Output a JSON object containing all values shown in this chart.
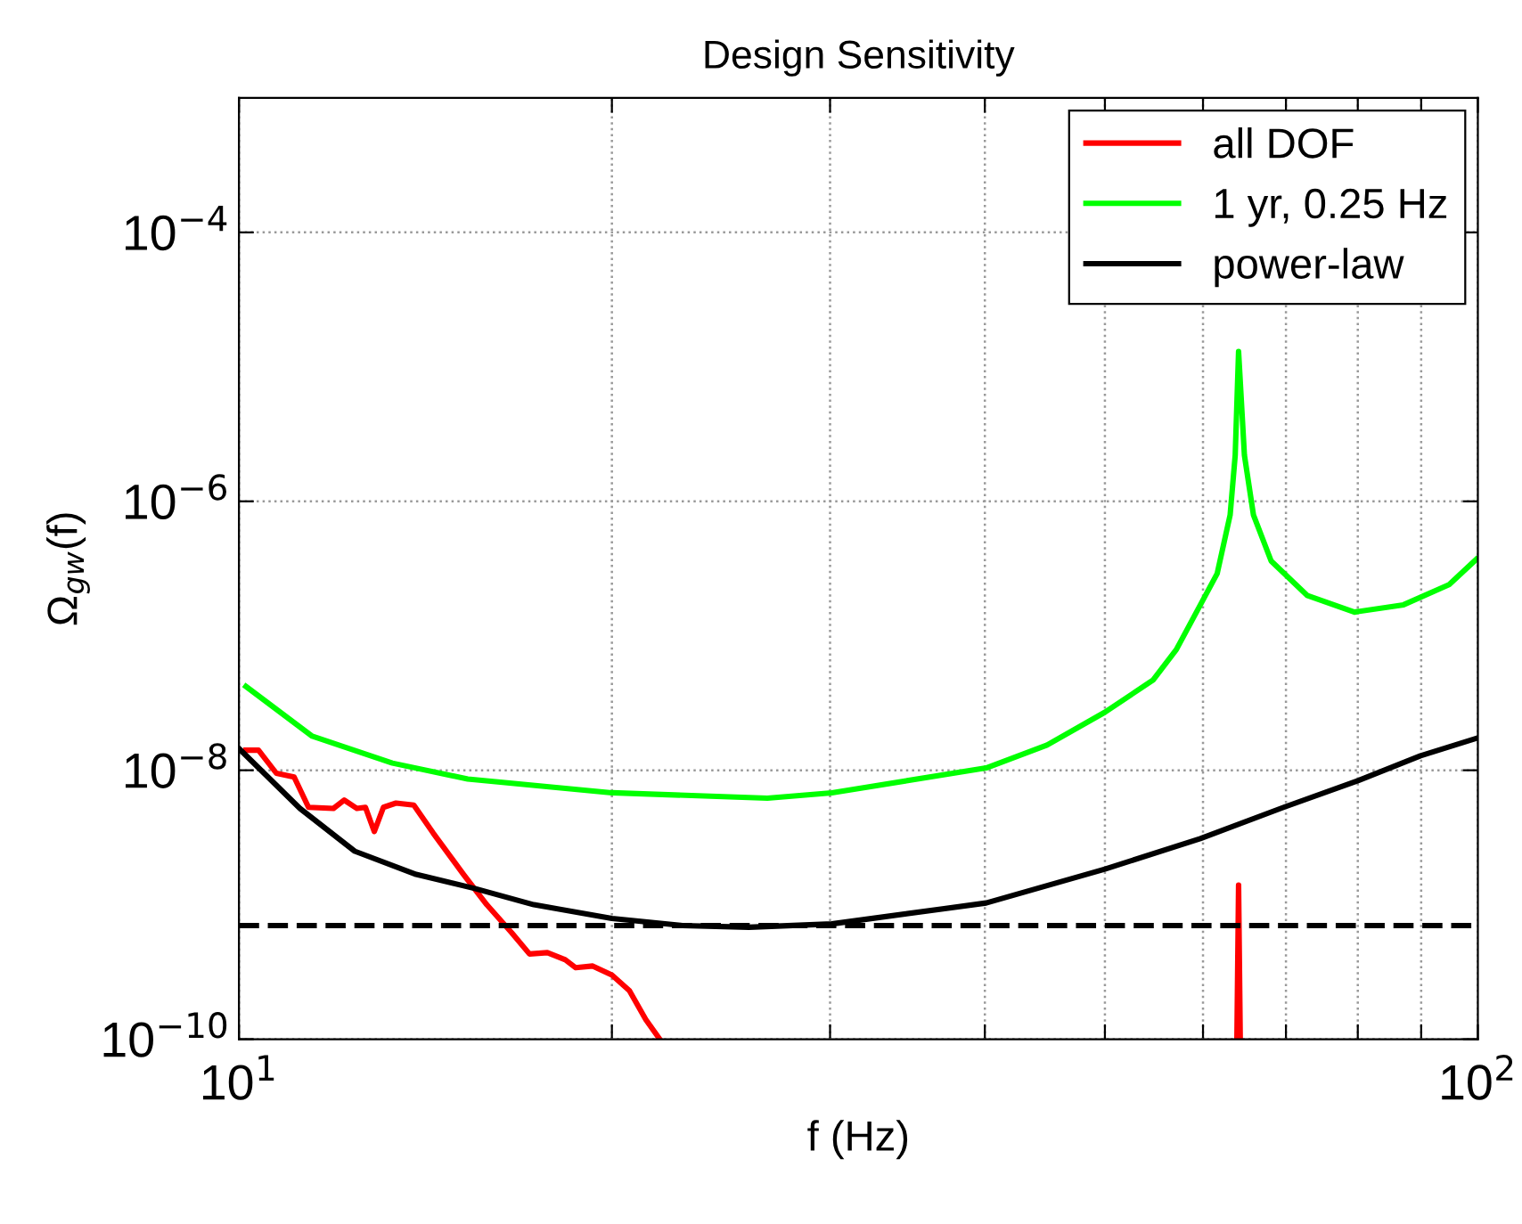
{
  "chart_data": {
    "type": "line",
    "title": "Design Sensitivity",
    "xlabel": "f (Hz)",
    "ylabel": "Ω$_{gw}$(f)",
    "log": "xy",
    "grid": true,
    "legend": "top right",
    "line_style": "solid",
    "marker": "none",
    "xlim": [
      10,
      100
    ],
    "ylim": [
      1e-10,
      0.001
    ],
    "xticks": [
      {
        "value": 10,
        "label": "10$^{1}$"
      },
      {
        "value": 20,
        "label": null
      },
      {
        "value": 30,
        "label": null
      },
      {
        "value": 40,
        "label": null
      },
      {
        "value": 50,
        "label": null
      },
      {
        "value": 60,
        "label": null
      },
      {
        "value": 70,
        "label": null
      },
      {
        "value": 80,
        "label": null
      },
      {
        "value": 90,
        "label": null
      },
      {
        "value": 100,
        "label": "10$^{2}$"
      }
    ],
    "yticks": [
      {
        "value": 1e-10,
        "label": "10$^{−10}$"
      },
      {
        "value": 1e-08,
        "label": "10$^{−8}$"
      },
      {
        "value": 1e-06,
        "label": "10$^{−6}$"
      },
      {
        "value": 0.0001,
        "label": "10$^{−4}$"
      }
    ],
    "series": [
      {
        "name": "all DOF",
        "color": "#ff0000",
        "x": [
          10.13,
          10.37,
          10.72,
          11.08,
          11.38,
          11.92,
          12.16,
          12.45,
          12.65,
          12.86,
          13.08,
          13.39,
          13.84,
          14.35,
          15.18,
          15.85,
          16.6,
          17.16,
          17.74,
          18.34,
          18.7,
          19.3,
          20.0,
          20.66,
          21.3,
          21.86,
          22.5,
          63.9,
          64.1,
          64.3
        ],
        "values": [
          1.41e-08,
          1.41e-08,
          9.5e-09,
          8.9e-09,
          5.3e-09,
          5.2e-09,
          6e-09,
          5.2e-09,
          5.3e-09,
          3.5e-09,
          5.3e-09,
          5.7e-09,
          5.5e-09,
          3.4e-09,
          1.68e-09,
          1e-09,
          6.2e-10,
          4.3e-10,
          4.4e-10,
          3.9e-10,
          3.4e-10,
          3.5e-10,
          3e-10,
          2.3e-10,
          1.4e-10,
          1e-10,
          null,
          1e-10,
          1.4e-09,
          1e-10
        ]
      },
      {
        "name": "1 yr, 0.25 Hz",
        "color": "#00ff00",
        "x": [
          10.13,
          11.46,
          13.3,
          15.3,
          20.0,
          26.7,
          30.1,
          40.1,
          44.9,
          50.0,
          54.7,
          57.1,
          61.6,
          63.1,
          63.7,
          64.1,
          64.8,
          65.9,
          68.1,
          72.8,
          79.5,
          87.1,
          94.8,
          99.7
        ],
        "values": [
          4.2e-08,
          1.79e-08,
          1.13e-08,
          8.6e-09,
          6.8e-09,
          6.2e-09,
          6.8e-09,
          1.04e-08,
          1.54e-08,
          2.7e-08,
          4.7e-08,
          7.9e-08,
          2.9e-07,
          7.9e-07,
          2.2e-06,
          1.3e-05,
          2.2e-06,
          7.9e-07,
          3.6e-07,
          2e-07,
          1.5e-07,
          1.7e-07,
          2.4e-07,
          3.7e-07
        ]
      },
      {
        "name": "power-law",
        "color": "#000000",
        "x": [
          10.0,
          11.2,
          12.4,
          13.9,
          15.5,
          17.3,
          20.0,
          22.8,
          25.8,
          30.1,
          40.1,
          50.0,
          59.7,
          69.7,
          80.1,
          89.9,
          100.0
        ],
        "values": [
          1.45e-08,
          5.2e-09,
          2.5e-09,
          1.68e-09,
          1.32e-09,
          1e-09,
          7.9e-10,
          7e-10,
          6.8e-10,
          7.2e-10,
          1.03e-09,
          1.84e-09,
          3.1e-09,
          5.3e-09,
          8.4e-09,
          1.28e-08,
          1.74e-08
        ]
      }
    ],
    "ref_lines": [
      {
        "axis": "y",
        "value": 7e-10,
        "label": null,
        "color": "#000000",
        "line_style": "dashed"
      }
    ]
  }
}
